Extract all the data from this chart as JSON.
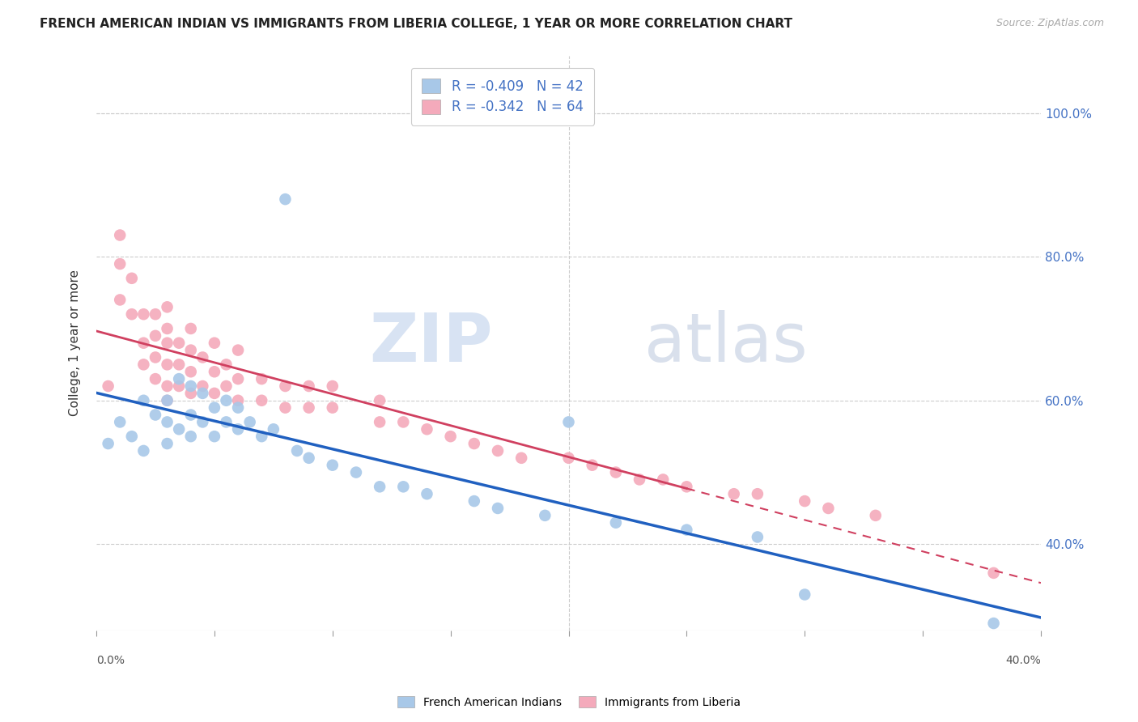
{
  "title": "FRENCH AMERICAN INDIAN VS IMMIGRANTS FROM LIBERIA COLLEGE, 1 YEAR OR MORE CORRELATION CHART",
  "source": "Source: ZipAtlas.com",
  "ylabel": "College, 1 year or more",
  "xlim": [
    0.0,
    0.4
  ],
  "ylim": [
    0.28,
    1.08
  ],
  "ytick_vals": [
    0.4,
    0.6,
    0.8,
    1.0
  ],
  "ytick_labels": [
    "40.0%",
    "60.0%",
    "80.0%",
    "100.0%"
  ],
  "legend_blue_R": "R = -0.409",
  "legend_blue_N": "N = 42",
  "legend_pink_R": "R = -0.342",
  "legend_pink_N": "N = 64",
  "blue_color": "#a8c8e8",
  "pink_color": "#f4aabb",
  "trendline_blue_color": "#2060c0",
  "trendline_pink_color": "#d04060",
  "blue_series_label": "French American Indians",
  "pink_series_label": "Immigrants from Liberia",
  "blue_x": [
    0.005,
    0.01,
    0.015,
    0.02,
    0.02,
    0.025,
    0.03,
    0.03,
    0.03,
    0.035,
    0.035,
    0.04,
    0.04,
    0.04,
    0.045,
    0.045,
    0.05,
    0.05,
    0.055,
    0.055,
    0.06,
    0.06,
    0.065,
    0.07,
    0.075,
    0.08,
    0.085,
    0.09,
    0.1,
    0.11,
    0.12,
    0.13,
    0.14,
    0.16,
    0.17,
    0.19,
    0.2,
    0.22,
    0.25,
    0.28,
    0.3,
    0.38
  ],
  "blue_y": [
    0.54,
    0.57,
    0.55,
    0.6,
    0.53,
    0.58,
    0.54,
    0.6,
    0.57,
    0.56,
    0.63,
    0.55,
    0.58,
    0.62,
    0.57,
    0.61,
    0.55,
    0.59,
    0.57,
    0.6,
    0.56,
    0.59,
    0.57,
    0.55,
    0.56,
    0.88,
    0.53,
    0.52,
    0.51,
    0.5,
    0.48,
    0.48,
    0.47,
    0.46,
    0.45,
    0.44,
    0.57,
    0.43,
    0.42,
    0.41,
    0.33,
    0.29
  ],
  "pink_x": [
    0.005,
    0.01,
    0.01,
    0.01,
    0.015,
    0.015,
    0.02,
    0.02,
    0.02,
    0.025,
    0.025,
    0.025,
    0.025,
    0.03,
    0.03,
    0.03,
    0.03,
    0.03,
    0.03,
    0.035,
    0.035,
    0.035,
    0.04,
    0.04,
    0.04,
    0.04,
    0.045,
    0.045,
    0.05,
    0.05,
    0.05,
    0.055,
    0.055,
    0.06,
    0.06,
    0.06,
    0.07,
    0.07,
    0.08,
    0.08,
    0.09,
    0.09,
    0.1,
    0.1,
    0.12,
    0.12,
    0.13,
    0.14,
    0.15,
    0.16,
    0.17,
    0.18,
    0.2,
    0.21,
    0.22,
    0.23,
    0.24,
    0.25,
    0.27,
    0.28,
    0.3,
    0.31,
    0.33,
    0.38
  ],
  "pink_y": [
    0.62,
    0.74,
    0.79,
    0.83,
    0.72,
    0.77,
    0.68,
    0.72,
    0.65,
    0.66,
    0.69,
    0.72,
    0.63,
    0.62,
    0.65,
    0.68,
    0.7,
    0.6,
    0.73,
    0.62,
    0.65,
    0.68,
    0.61,
    0.64,
    0.67,
    0.7,
    0.62,
    0.66,
    0.61,
    0.64,
    0.68,
    0.62,
    0.65,
    0.6,
    0.63,
    0.67,
    0.6,
    0.63,
    0.59,
    0.62,
    0.59,
    0.62,
    0.59,
    0.62,
    0.57,
    0.6,
    0.57,
    0.56,
    0.55,
    0.54,
    0.53,
    0.52,
    0.52,
    0.51,
    0.5,
    0.49,
    0.49,
    0.48,
    0.47,
    0.47,
    0.46,
    0.45,
    0.44,
    0.36
  ],
  "pink_trendline_solid_end": 0.25,
  "pink_trendline_dashed_start": 0.25
}
